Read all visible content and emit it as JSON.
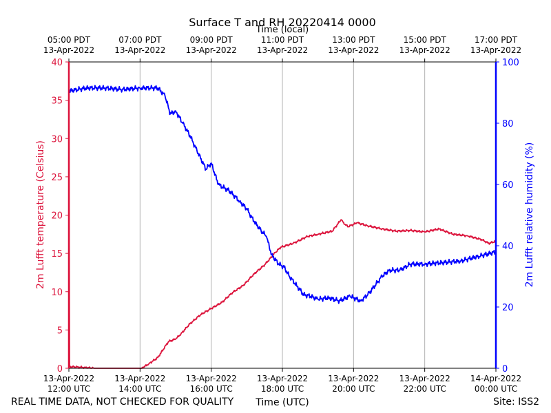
{
  "chart_data": {
    "type": "line",
    "title": "Surface T and RH 20220414 0000",
    "top_axis_label": "Time (local)",
    "xlabel": "Time (UTC)",
    "ylabel_left": "2m Lufft temperature (Celsius)",
    "ylabel_right": "2m Lufft relative humidity (%)",
    "footer_left": "REAL TIME DATA, NOT CHECKED FOR QUALITY",
    "footer_right": "Site: ISS2",
    "xlim_hours": [
      12,
      24
    ],
    "ylim_left": [
      0,
      40
    ],
    "ylim_right": [
      0,
      100
    ],
    "grid": "vertical",
    "colors": {
      "temperature": "#dc143c",
      "humidity": "#0000ff",
      "grid": "#b0b0b0",
      "axis": "#000000"
    },
    "left_ticks": [
      "0",
      "5",
      "10",
      "15",
      "20",
      "25",
      "30",
      "35",
      "40"
    ],
    "right_ticks": [
      "0",
      "20",
      "40",
      "60",
      "80",
      "100"
    ],
    "bottom_ticks": [
      {
        "hour": 12,
        "date": "13-Apr-2022",
        "time": "12:00 UTC"
      },
      {
        "hour": 14,
        "date": "13-Apr-2022",
        "time": "14:00 UTC"
      },
      {
        "hour": 16,
        "date": "13-Apr-2022",
        "time": "16:00 UTC"
      },
      {
        "hour": 18,
        "date": "13-Apr-2022",
        "time": "18:00 UTC"
      },
      {
        "hour": 20,
        "date": "13-Apr-2022",
        "time": "20:00 UTC"
      },
      {
        "hour": 22,
        "date": "13-Apr-2022",
        "time": "22:00 UTC"
      },
      {
        "hour": 24,
        "date": "14-Apr-2022",
        "time": "00:00 UTC"
      }
    ],
    "top_ticks": [
      {
        "hour": 12,
        "time": "05:00 PDT",
        "date": "13-Apr-2022"
      },
      {
        "hour": 14,
        "time": "07:00 PDT",
        "date": "13-Apr-2022"
      },
      {
        "hour": 16,
        "time": "09:00 PDT",
        "date": "13-Apr-2022"
      },
      {
        "hour": 18,
        "time": "11:00 PDT",
        "date": "13-Apr-2022"
      },
      {
        "hour": 20,
        "time": "13:00 PDT",
        "date": "13-Apr-2022"
      },
      {
        "hour": 22,
        "time": "15:00 PDT",
        "date": "13-Apr-2022"
      },
      {
        "hour": 24,
        "time": "17:00 PDT",
        "date": "13-Apr-2022"
      }
    ],
    "series": [
      {
        "name": "2m Lufft temperature (Celsius)",
        "axis": "left",
        "x": [
          12.0,
          12.02,
          12.45,
          12.7,
          14.05,
          14.25,
          14.5,
          14.8,
          15.0,
          15.15,
          15.4,
          15.7,
          16.0,
          16.3,
          16.6,
          16.9,
          17.2,
          17.5,
          17.8,
          17.95,
          18.3,
          18.7,
          19.0,
          19.4,
          19.65,
          19.75,
          19.85,
          20.1,
          20.4,
          20.8,
          21.2,
          21.6,
          22.0,
          22.4,
          22.8,
          23.2,
          23.6,
          23.8,
          24.0
        ],
        "values": [
          40.0,
          0.2,
          0.1,
          0.0,
          0.0,
          0.6,
          1.4,
          3.5,
          3.8,
          4.5,
          5.8,
          7.0,
          7.8,
          8.6,
          9.9,
          10.8,
          12.3,
          13.5,
          15.1,
          15.8,
          16.3,
          17.2,
          17.5,
          17.9,
          19.4,
          18.8,
          18.5,
          19.0,
          18.6,
          18.2,
          17.9,
          18.0,
          17.8,
          18.2,
          17.5,
          17.3,
          16.8,
          16.3,
          16.6
        ]
      },
      {
        "name": "2m Lufft relative humidity (%)",
        "axis": "right",
        "x": [
          12.0,
          12.5,
          13.0,
          13.5,
          14.0,
          14.5,
          14.7,
          14.85,
          15.0,
          15.2,
          15.4,
          15.6,
          15.85,
          16.0,
          16.2,
          16.5,
          16.8,
          17.0,
          17.2,
          17.4,
          17.55,
          17.7,
          17.9,
          18.05,
          18.2,
          18.4,
          18.6,
          18.8,
          19.0,
          19.3,
          19.6,
          19.9,
          20.2,
          20.4,
          20.6,
          20.8,
          21.0,
          21.3,
          21.6,
          22.0,
          22.5,
          23.0,
          23.5,
          24.0
        ],
        "values": [
          90.5,
          91.5,
          91.5,
          91.0,
          91.5,
          91.5,
          89.0,
          83.0,
          84.0,
          80.0,
          76.0,
          71.0,
          65.0,
          67.0,
          60.0,
          58.0,
          54.5,
          52.0,
          48.0,
          45.0,
          43.0,
          37.0,
          34.0,
          33.0,
          30.0,
          27.0,
          24.0,
          23.5,
          22.5,
          23.0,
          22.0,
          23.5,
          22.0,
          24.0,
          27.0,
          30.0,
          32.0,
          32.0,
          34.0,
          34.0,
          34.5,
          35.0,
          36.5,
          38.0
        ]
      }
    ]
  }
}
